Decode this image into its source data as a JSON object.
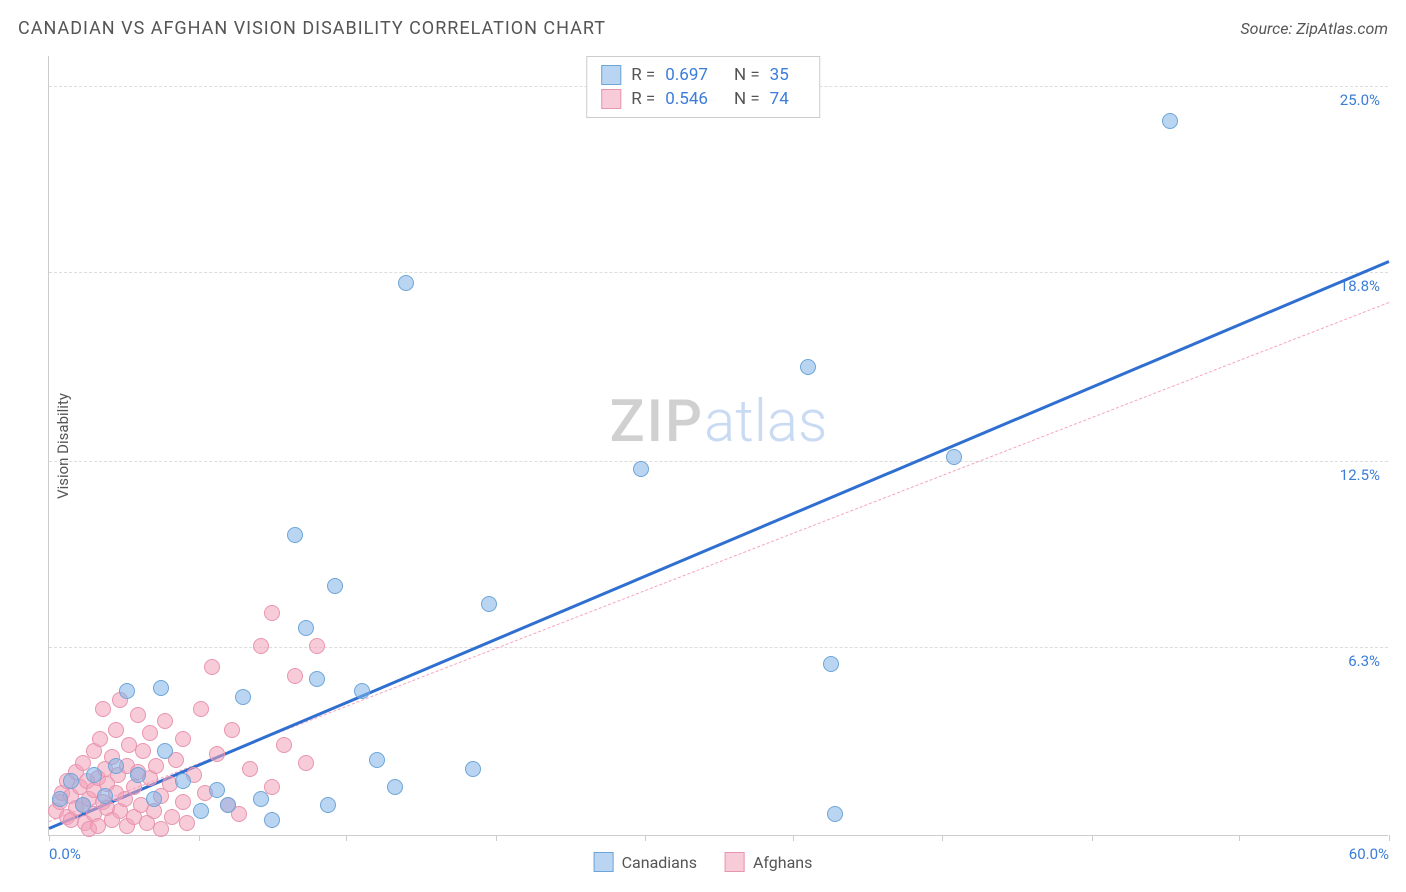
{
  "title": "CANADIAN VS AFGHAN VISION DISABILITY CORRELATION CHART",
  "source": "Source: ZipAtlas.com",
  "ylabel": "Vision Disability",
  "watermark": {
    "part1": "ZIP",
    "part2": "atlas"
  },
  "chart": {
    "type": "scatter",
    "xlim": [
      0,
      60
    ],
    "ylim": [
      0,
      26
    ],
    "xtick_positions": [
      0,
      6.7,
      13.3,
      20,
      26.7,
      33.3,
      40,
      46.7,
      53.3,
      60
    ],
    "xtick_labels": {
      "0": "0.0%",
      "60": "60.0%"
    },
    "ytick_positions": [
      6.3,
      12.5,
      18.8,
      25.0
    ],
    "ytick_labels": [
      "6.3%",
      "12.5%",
      "18.8%",
      "25.0%"
    ],
    "grid_color": "#dddddd",
    "axis_color": "#cccccc",
    "background_color": "#ffffff",
    "tick_label_color": "#3b7dd8",
    "marker_radius": 8,
    "series": [
      {
        "name": "Canadians",
        "color_fill": "rgba(127,179,230,0.55)",
        "color_stroke": "#6ea5d8",
        "R": "0.697",
        "N": "35",
        "trend": {
          "x1": 0,
          "y1": 0.3,
          "x2": 60,
          "y2": 19.2,
          "color": "#2e6fd0",
          "width": 3,
          "dash": false
        },
        "points": [
          [
            0.5,
            1.2
          ],
          [
            1.0,
            1.8
          ],
          [
            1.5,
            1.0
          ],
          [
            2.0,
            2.0
          ],
          [
            2.5,
            1.3
          ],
          [
            3.0,
            2.3
          ],
          [
            3.5,
            4.8
          ],
          [
            4.0,
            2.0
          ],
          [
            4.7,
            1.2
          ],
          [
            5.2,
            2.8
          ],
          [
            5.0,
            4.9
          ],
          [
            6.0,
            1.8
          ],
          [
            6.8,
            0.8
          ],
          [
            7.5,
            1.5
          ],
          [
            8.0,
            1.0
          ],
          [
            9.5,
            1.2
          ],
          [
            8.7,
            4.6
          ],
          [
            10.0,
            0.5
          ],
          [
            11.5,
            6.9
          ],
          [
            12.5,
            1.0
          ],
          [
            11.0,
            10.0
          ],
          [
            12.8,
            8.3
          ],
          [
            12.0,
            5.2
          ],
          [
            14.0,
            4.8
          ],
          [
            14.7,
            2.5
          ],
          [
            15.5,
            1.6
          ],
          [
            16.0,
            18.4
          ],
          [
            19.0,
            2.2
          ],
          [
            19.7,
            7.7
          ],
          [
            26.5,
            12.2
          ],
          [
            34.0,
            15.6
          ],
          [
            35.0,
            5.7
          ],
          [
            35.2,
            0.7
          ],
          [
            40.5,
            12.6
          ],
          [
            50.2,
            23.8
          ]
        ]
      },
      {
        "name": "Afghans",
        "color_fill": "rgba(242,160,185,0.55)",
        "color_stroke": "#e895b0",
        "R": "0.546",
        "N": "74",
        "trend": {
          "x1": 0,
          "y1": 0.5,
          "x2": 60,
          "y2": 17.8,
          "color": "#f5a5bd",
          "width": 1.5,
          "dash": true
        },
        "points": [
          [
            0.3,
            0.8
          ],
          [
            0.5,
            1.1
          ],
          [
            0.6,
            1.4
          ],
          [
            0.8,
            0.6
          ],
          [
            0.8,
            1.8
          ],
          [
            1.0,
            0.5
          ],
          [
            1.0,
            1.3
          ],
          [
            1.2,
            2.1
          ],
          [
            1.2,
            0.9
          ],
          [
            1.4,
            1.6
          ],
          [
            1.5,
            1.0
          ],
          [
            1.5,
            2.4
          ],
          [
            1.6,
            0.4
          ],
          [
            1.7,
            1.8
          ],
          [
            1.8,
            1.2
          ],
          [
            1.8,
            0.2
          ],
          [
            2.0,
            0.7
          ],
          [
            2.0,
            2.8
          ],
          [
            2.0,
            1.5
          ],
          [
            2.2,
            1.9
          ],
          [
            2.2,
            0.3
          ],
          [
            2.3,
            3.2
          ],
          [
            2.4,
            1.1
          ],
          [
            2.4,
            4.2
          ],
          [
            2.5,
            2.2
          ],
          [
            2.6,
            0.9
          ],
          [
            2.6,
            1.7
          ],
          [
            2.8,
            2.6
          ],
          [
            2.8,
            0.5
          ],
          [
            3.0,
            1.4
          ],
          [
            3.0,
            3.5
          ],
          [
            3.1,
            2.0
          ],
          [
            3.2,
            0.8
          ],
          [
            3.2,
            4.5
          ],
          [
            3.4,
            1.2
          ],
          [
            3.5,
            2.3
          ],
          [
            3.5,
            0.3
          ],
          [
            3.6,
            3.0
          ],
          [
            3.8,
            1.6
          ],
          [
            3.8,
            0.6
          ],
          [
            4.0,
            2.1
          ],
          [
            4.0,
            4.0
          ],
          [
            4.1,
            1.0
          ],
          [
            4.2,
            2.8
          ],
          [
            4.4,
            0.4
          ],
          [
            4.5,
            1.9
          ],
          [
            4.5,
            3.4
          ],
          [
            4.7,
            0.8
          ],
          [
            4.8,
            2.3
          ],
          [
            5.0,
            1.3
          ],
          [
            5.0,
            0.2
          ],
          [
            5.2,
            3.8
          ],
          [
            5.4,
            1.7
          ],
          [
            5.5,
            0.6
          ],
          [
            5.7,
            2.5
          ],
          [
            6.0,
            1.1
          ],
          [
            6.0,
            3.2
          ],
          [
            6.2,
            0.4
          ],
          [
            6.5,
            2.0
          ],
          [
            6.8,
            4.2
          ],
          [
            7.0,
            1.4
          ],
          [
            7.3,
            5.6
          ],
          [
            7.5,
            2.7
          ],
          [
            8.0,
            1.0
          ],
          [
            8.2,
            3.5
          ],
          [
            8.5,
            0.7
          ],
          [
            9.0,
            2.2
          ],
          [
            9.5,
            6.3
          ],
          [
            10.0,
            1.6
          ],
          [
            10.0,
            7.4
          ],
          [
            10.5,
            3.0
          ],
          [
            11.0,
            5.3
          ],
          [
            11.5,
            2.4
          ],
          [
            12.0,
            6.3
          ]
        ]
      }
    ]
  },
  "legend_top_labels": {
    "R": "R =",
    "N": "N ="
  },
  "legend_bottom": [
    "Canadians",
    "Afghans"
  ]
}
